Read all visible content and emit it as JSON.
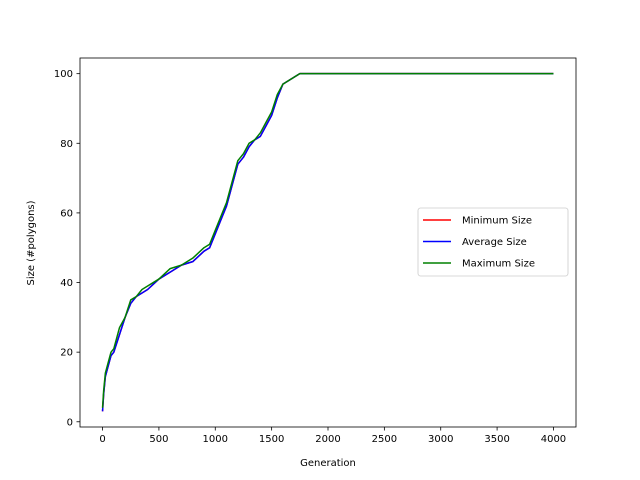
{
  "chart_data": {
    "type": "line",
    "title": "",
    "xlabel": "Generation",
    "ylabel": "Size (#polygons)",
    "xlim": [
      -200,
      4200
    ],
    "ylim": [
      -1.5,
      104.5
    ],
    "xticks": [
      0,
      500,
      1000,
      1500,
      2000,
      2500,
      3000,
      3500,
      4000
    ],
    "yticks": [
      0,
      20,
      40,
      60,
      80,
      100
    ],
    "grid": false,
    "legend_position": "center-right",
    "series": [
      {
        "name": "Minimum Size",
        "color": "#ff0000",
        "x": [
          0,
          10,
          25,
          50,
          75,
          100,
          150,
          200,
          250,
          300,
          350,
          400,
          500,
          600,
          700,
          800,
          900,
          950,
          1000,
          1050,
          1100,
          1150,
          1200,
          1250,
          1300,
          1350,
          1400,
          1450,
          1500,
          1550,
          1600,
          1650,
          1700,
          1750,
          1800,
          2000,
          2500,
          3000,
          3500,
          4000
        ],
        "y": [
          3,
          8,
          13,
          16,
          19,
          20,
          25,
          30,
          34,
          36,
          37,
          38,
          41,
          43,
          45,
          46,
          49,
          50,
          54,
          58,
          62,
          68,
          74,
          76,
          79,
          81,
          82,
          85,
          88,
          93,
          97,
          98,
          99,
          100,
          100,
          100,
          100,
          100,
          100,
          100
        ]
      },
      {
        "name": "Average Size",
        "color": "#0000ff",
        "x": [
          0,
          10,
          25,
          50,
          75,
          100,
          150,
          200,
          250,
          300,
          350,
          400,
          500,
          600,
          700,
          800,
          900,
          950,
          1000,
          1050,
          1100,
          1150,
          1200,
          1250,
          1300,
          1350,
          1400,
          1450,
          1500,
          1550,
          1600,
          1650,
          1700,
          1750,
          1800,
          2000,
          2500,
          3000,
          3500,
          4000
        ],
        "y": [
          3,
          8,
          13,
          16,
          19,
          20,
          25,
          30,
          34,
          36,
          37,
          38,
          41,
          43,
          45,
          46,
          49,
          50,
          54,
          58,
          62,
          68,
          74,
          76,
          79,
          81,
          82,
          85,
          88,
          93,
          97,
          98,
          99,
          100,
          100,
          100,
          100,
          100,
          100,
          100
        ]
      },
      {
        "name": "Maximum Size",
        "color": "#008000",
        "x": [
          0,
          10,
          25,
          50,
          75,
          100,
          150,
          200,
          250,
          300,
          350,
          400,
          500,
          600,
          700,
          800,
          900,
          950,
          1000,
          1050,
          1100,
          1150,
          1200,
          1250,
          1300,
          1350,
          1400,
          1450,
          1500,
          1550,
          1600,
          1650,
          1700,
          1750,
          1800,
          2000,
          2500,
          3000,
          3500,
          4000
        ],
        "y": [
          4,
          9,
          14,
          17,
          20,
          21,
          27,
          30,
          35,
          36,
          38,
          39,
          41,
          44,
          45,
          47,
          50,
          51,
          55,
          59,
          63,
          69,
          75,
          77,
          80,
          81,
          83,
          86,
          89,
          94,
          97,
          98,
          99,
          100,
          100,
          100,
          100,
          100,
          100,
          100
        ]
      }
    ]
  }
}
